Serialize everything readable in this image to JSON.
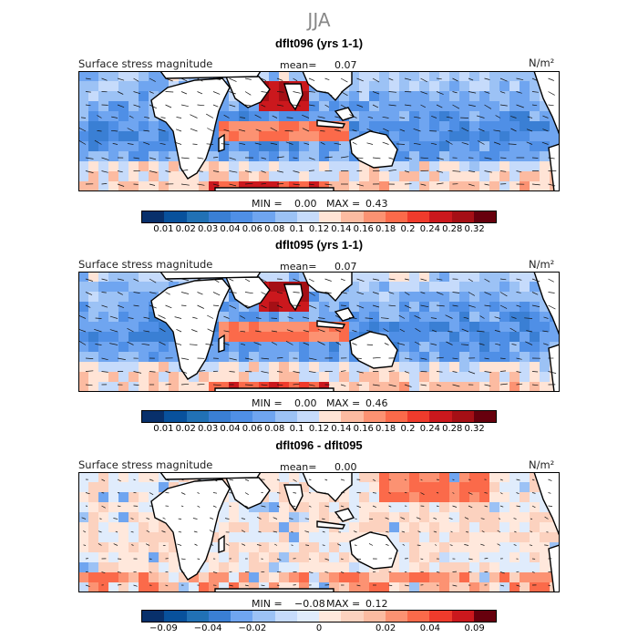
{
  "supertitle": "JJA",
  "colors": {
    "land": "#ffffff",
    "coast": "#000000",
    "abs_palette": [
      "#08306b",
      "#08519c",
      "#2171b5",
      "#3a7fd4",
      "#4f8fe6",
      "#6fa5f0",
      "#9cc2f5",
      "#c6dbfb",
      "#ffe4d6",
      "#fcbba1",
      "#fc9272",
      "#fb6a4a",
      "#ef3b2c",
      "#cb181d",
      "#a50f15",
      "#67000d"
    ],
    "diff_palette": [
      "#08306b",
      "#08519c",
      "#2171b5",
      "#3a7fd4",
      "#6fa5f0",
      "#9cc2f5",
      "#c6dbfb",
      "#e0ecfc",
      "#ffe8dc",
      "#fcd2bf",
      "#fcbba1",
      "#fc9272",
      "#fb6a4a",
      "#ef3b2c",
      "#cb181d",
      "#67000d"
    ]
  },
  "panels": [
    {
      "title": "dflt096 (yrs 1-1)",
      "left_label": "Surface stress magnitude",
      "mean_label": "mean=",
      "mean_value": "0.07",
      "units": "N/m²",
      "min_label": "MIN =",
      "min_value": "0.00",
      "max_label": "MAX =",
      "max_value": "0.43",
      "colorbar_ticks": [
        "0.01",
        "0.02",
        "0.03",
        "0.04",
        "0.06",
        "0.08",
        "0.1",
        "0.12",
        "0.14",
        "0.16",
        "0.18",
        "0.2",
        "0.24",
        "0.28",
        "0.32"
      ]
    },
    {
      "title": "dflt095 (yrs 1-1)",
      "left_label": "Surface stress magnitude",
      "mean_label": "mean=",
      "mean_value": "0.07",
      "units": "N/m²",
      "min_label": "MIN =",
      "min_value": "0.00",
      "max_label": "MAX =",
      "max_value": "0.46",
      "colorbar_ticks": [
        "0.01",
        "0.02",
        "0.03",
        "0.04",
        "0.06",
        "0.08",
        "0.1",
        "0.12",
        "0.14",
        "0.16",
        "0.18",
        "0.2",
        "0.24",
        "0.28",
        "0.32"
      ]
    },
    {
      "title": "dflt096 - dflt095",
      "left_label": "Surface stress magnitude",
      "mean_label": "mean=",
      "mean_value": "0.00",
      "units": "N/m²",
      "min_label": "MIN =",
      "min_value": "−0.08",
      "max_label": "MAX =",
      "max_value": "0.12",
      "colorbar_ticks": [
        "−0.09",
        "−0.04",
        "−0.02",
        "0",
        "0.02",
        "0.04",
        "0.09"
      ]
    }
  ],
  "chart_data": [
    {
      "type": "heatmap",
      "title": "dflt096 (yrs 1-1)",
      "variable": "Surface stress magnitude",
      "units": "N/m²",
      "mean": 0.07,
      "min": 0.0,
      "max": 0.43,
      "colorbar_levels": [
        0.01,
        0.02,
        0.03,
        0.04,
        0.06,
        0.08,
        0.1,
        0.12,
        0.14,
        0.16,
        0.18,
        0.2,
        0.24,
        0.28,
        0.32
      ]
    },
    {
      "type": "heatmap",
      "title": "dflt095 (yrs 1-1)",
      "variable": "Surface stress magnitude",
      "units": "N/m²",
      "mean": 0.07,
      "min": 0.0,
      "max": 0.46,
      "colorbar_levels": [
        0.01,
        0.02,
        0.03,
        0.04,
        0.06,
        0.08,
        0.1,
        0.12,
        0.14,
        0.16,
        0.18,
        0.2,
        0.24,
        0.28,
        0.32
      ]
    },
    {
      "type": "heatmap",
      "title": "dflt096 - dflt095",
      "variable": "Surface stress magnitude",
      "units": "N/m²",
      "mean": 0.0,
      "min": -0.08,
      "max": 0.12,
      "colorbar_levels": [
        -0.09,
        -0.04,
        -0.02,
        0,
        0.02,
        0.04,
        0.09
      ]
    }
  ]
}
